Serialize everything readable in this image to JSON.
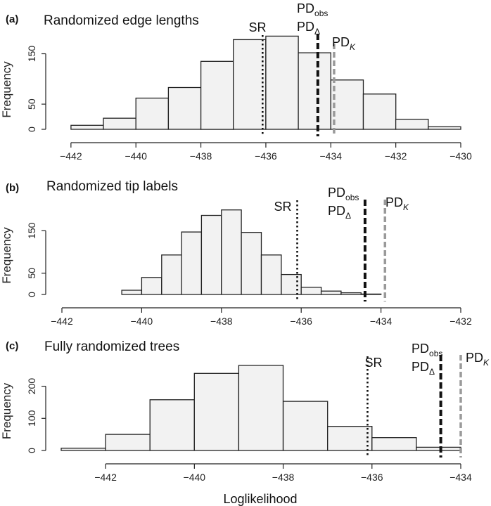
{
  "chart_data": [
    {
      "panel": "(a)",
      "title": "Randomized edge lengths",
      "type": "bar",
      "ylabel": "Frequency",
      "xlim": [
        -442.3,
        -430
      ],
      "ylim": [
        0,
        180
      ],
      "xticks": [
        -442,
        -440,
        -438,
        -436,
        -434,
        -432,
        -430
      ],
      "yticks": [
        0,
        50,
        150
      ],
      "bins": [
        {
          "x0": -442,
          "x1": -441,
          "count": 8
        },
        {
          "x0": -441,
          "x1": -440,
          "count": 22
        },
        {
          "x0": -440,
          "x1": -439,
          "count": 62
        },
        {
          "x0": -439,
          "x1": -438,
          "count": 83
        },
        {
          "x0": -438,
          "x1": -437,
          "count": 135
        },
        {
          "x0": -437,
          "x1": -436,
          "count": 178
        },
        {
          "x0": -436,
          "x1": -435,
          "count": 185
        },
        {
          "x0": -435,
          "x1": -434,
          "count": 152
        },
        {
          "x0": -434,
          "x1": -433,
          "count": 98
        },
        {
          "x0": -433,
          "x1": -432,
          "count": 70
        },
        {
          "x0": -432,
          "x1": -431,
          "count": 20
        },
        {
          "x0": -431,
          "x1": -430,
          "count": 5
        }
      ],
      "reference_lines": [
        {
          "id": "sr",
          "label": "SR",
          "x": -436.1,
          "style": "dotted",
          "color": "#111111"
        },
        {
          "id": "pd_obs",
          "label": "PD",
          "sub": "obs",
          "x": -434.4,
          "style": "thick-dashed",
          "color": "#111111"
        },
        {
          "id": "pd_delta",
          "label": "PD",
          "sub": "Δ",
          "x": -434.4,
          "style": "thick-dashed",
          "color": "#111111"
        },
        {
          "id": "pd_k",
          "label": "PD",
          "sub": "K",
          "x": -433.9,
          "style": "dashed",
          "color": "#9a9a9a"
        }
      ]
    },
    {
      "panel": "(b)",
      "title": "Randomized tip labels",
      "type": "bar",
      "ylabel": "Frequency",
      "xlim": [
        -442,
        -432
      ],
      "ylim": [
        0,
        210
      ],
      "xticks": [
        -442,
        -440,
        -438,
        -436,
        -434,
        -432
      ],
      "yticks": [
        0,
        50,
        150
      ],
      "bins": [
        {
          "x0": -440.5,
          "x1": -440,
          "count": 10
        },
        {
          "x0": -440,
          "x1": -439.5,
          "count": 40
        },
        {
          "x0": -439.5,
          "x1": -439,
          "count": 93
        },
        {
          "x0": -439,
          "x1": -438.5,
          "count": 147
        },
        {
          "x0": -438.5,
          "x1": -438,
          "count": 186
        },
        {
          "x0": -438,
          "x1": -437.5,
          "count": 199
        },
        {
          "x0": -437.5,
          "x1": -437,
          "count": 146
        },
        {
          "x0": -437,
          "x1": -436.5,
          "count": 93
        },
        {
          "x0": -436.5,
          "x1": -436,
          "count": 47
        },
        {
          "x0": -436,
          "x1": -435.5,
          "count": 17
        },
        {
          "x0": -435.5,
          "x1": -435,
          "count": 8
        },
        {
          "x0": -435,
          "x1": -434.5,
          "count": 4
        },
        {
          "x0": -434.5,
          "x1": -434,
          "count": 1
        }
      ],
      "reference_lines": [
        {
          "id": "sr",
          "label": "SR",
          "x": -436.1,
          "style": "dotted",
          "color": "#111111"
        },
        {
          "id": "pd_obs",
          "label": "PD",
          "sub": "obs",
          "x": -434.4,
          "style": "thick-dashed",
          "color": "#111111"
        },
        {
          "id": "pd_delta",
          "label": "PD",
          "sub": "Δ",
          "x": -434.4,
          "style": "thick-dashed",
          "color": "#111111"
        },
        {
          "id": "pd_k",
          "label": "PD",
          "sub": "K",
          "x": -433.9,
          "style": "dashed",
          "color": "#9a9a9a"
        }
      ]
    },
    {
      "panel": "(c)",
      "title": "Fully randomized trees",
      "type": "bar",
      "ylabel": "Frequency",
      "xlim": [
        -443,
        -434
      ],
      "ylim": [
        0,
        280
      ],
      "xticks": [
        -442,
        -440,
        -438,
        -436,
        -434
      ],
      "yticks": [
        0,
        100,
        200
      ],
      "bins": [
        {
          "x0": -443,
          "x1": -442,
          "count": 7
        },
        {
          "x0": -442,
          "x1": -441,
          "count": 50
        },
        {
          "x0": -441,
          "x1": -440,
          "count": 158
        },
        {
          "x0": -440,
          "x1": -439,
          "count": 240
        },
        {
          "x0": -439,
          "x1": -438,
          "count": 265
        },
        {
          "x0": -438,
          "x1": -437,
          "count": 153
        },
        {
          "x0": -437,
          "x1": -436,
          "count": 75
        },
        {
          "x0": -436,
          "x1": -435,
          "count": 40
        },
        {
          "x0": -435,
          "x1": -434,
          "count": 10
        }
      ],
      "reference_lines": [
        {
          "id": "sr",
          "label": "SR",
          "x": -436.1,
          "style": "dotted",
          "color": "#111111"
        },
        {
          "id": "pd_obs",
          "label": "PD",
          "sub": "obs",
          "x": -434.45,
          "style": "thick-dashed",
          "color": "#111111"
        },
        {
          "id": "pd_delta",
          "label": "PD",
          "sub": "Δ",
          "x": -434.45,
          "style": "thick-dashed",
          "color": "#111111"
        },
        {
          "id": "pd_k",
          "label": "PD",
          "sub": "K",
          "x": -434.0,
          "style": "dashed",
          "color": "#9a9a9a"
        }
      ]
    }
  ],
  "xlabel": "Loglikelihood",
  "colors": {
    "bar_fill": "#f2f2f2",
    "bar_stroke": "#222222",
    "pd_k_line": "#9a9a9a",
    "black_line": "#111111"
  }
}
